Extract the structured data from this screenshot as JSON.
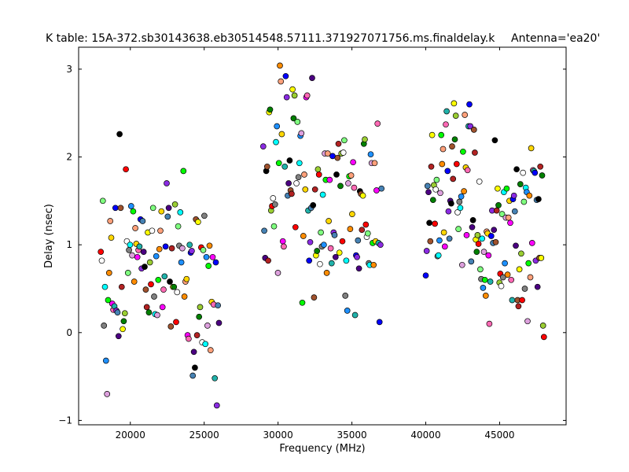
{
  "chart_data": {
    "type": "scatter",
    "title": "K table: 15A-372.sb30143638.eb30514548.57111.371927071756.ms.finaldelay.k",
    "subtitle": "Antenna='ea20'",
    "xlabel": "Frequency (MHz)",
    "ylabel": "Delay (nsec)",
    "xlim": [
      16500,
      49500
    ],
    "ylim": [
      -1.05,
      3.25
    ],
    "xticks": [
      20000,
      25000,
      30000,
      35000,
      40000,
      45000
    ],
    "yticks": [
      -1,
      0,
      1,
      2,
      3
    ],
    "grid": false,
    "marker_colors": [
      "#ff0000",
      "#00ff00",
      "#0000ff",
      "#ffff00",
      "#00ffff",
      "#ff00ff",
      "#000000",
      "#ffffff",
      "#ff8c00",
      "#8a2be2",
      "#008000",
      "#1e90ff",
      "#ff69b4",
      "#a0522d",
      "#7fff7f",
      "#ffa07a",
      "#4682b4",
      "#9acd32",
      "#dda0dd",
      "#20b2aa",
      "#b22222",
      "#808080",
      "#ffd700",
      "#4b0082"
    ],
    "bands": [
      {
        "x_range": [
          18000,
          26000
        ],
        "y": [
          0.92,
          0.82,
          1.5,
          0.08,
          0.52,
          -0.32,
          -0.7,
          0.37,
          0.68,
          1.27,
          1.08,
          0.33,
          0.26,
          0.3,
          1.42,
          0.25,
          0.23,
          -0.04,
          2.26,
          1.42,
          0.52,
          0.04,
          0.13,
          0.22,
          1.86,
          1.04,
          0.68,
          0.94,
          1.0,
          1.44,
          0.88,
          1.38,
          0.58,
          1.19,
          1.01,
          0.86,
          0.94,
          0.98,
          1.29,
          0.73,
          1.27,
          0.92,
          0.75,
          0.49,
          0.29,
          1.14,
          0.23,
          0.8,
          0.55,
          1.16,
          1.42,
          0.41,
          0.21,
          0.87,
          0.2,
          0.6,
          0.95,
          1.16,
          1.38,
          0.29,
          0.49,
          0.64,
          0.98,
          1.7,
          1.32,
          1.42,
          0.58,
          0.07,
          0.96,
          0.52,
          0.52,
          1.46,
          0.12,
          0.46,
          1.21,
          0.99,
          1.37,
          0.8,
          0.96,
          1.84,
          0.41,
          0.58,
          0.61,
          -0.03,
          -0.07,
          1.0,
          0.91,
          0.93,
          -0.49,
          -0.22,
          -0.4,
          1.29,
          -0.03,
          1.26,
          0.18,
          0.29,
          0.97,
          -0.11,
          0.94,
          1.33,
          -0.13,
          0.86,
          0.08,
          0.76,
          0.99,
          -0.2,
          0.35,
          0.86,
          0.32,
          -0.52,
          0.8,
          -0.83,
          0.31,
          0.11
        ]
      },
      {
        "x_range": [
          29000,
          37000
        ],
        "y": [
          2.12,
          1.16,
          0.85,
          1.84,
          1.89,
          0.82,
          2.51,
          2.54,
          1.39,
          1.44,
          1.53,
          1.21,
          1.46,
          2.17,
          2.35,
          0.68,
          1.93,
          3.04,
          2.86,
          2.26,
          1.04,
          0.98,
          1.89,
          2.92,
          2.68,
          1.56,
          1.7,
          1.96,
          1.62,
          1.58,
          2.77,
          2.44,
          2.7,
          1.2,
          1.7,
          2.4,
          1.77,
          1.93,
          2.24,
          2.27,
          0.34,
          1.1,
          1.8,
          1.63,
          2.68,
          2.7,
          1.39,
          0.82,
          1.03,
          1.42,
          2.9,
          1.45,
          0.4,
          1.63,
          0.88,
          0.93,
          1.86,
          1.8,
          0.78,
          1.14,
          0.98,
          1.57,
          1.0,
          2.04,
          1.74,
          0.68,
          2.04,
          1.27,
          1.74,
          0.96,
          0.79,
          2.01,
          1.14,
          1.11,
          0.86,
          1.8,
          1.99,
          2.15,
          0.91,
          1.67,
          2.04,
          1.04,
          2.05,
          2.19,
          0.42,
          0.82,
          0.25,
          1.7,
          1.78,
          1.18,
          1.79,
          1.35,
          1.94,
          1.65,
          0.2,
          0.88,
          0.86,
          1.05,
          0.73,
          1.61,
          1.58,
          1.17,
          1.56,
          2.15,
          2.2,
          1.23,
          1.09,
          1.13,
          0.79,
          0.77,
          2.03,
          1.93,
          1.02,
          0.77,
          1.93,
          1.04,
          1.62,
          2.38,
          1.02,
          0.12,
          1.0,
          1.64
        ]
      },
      {
        "x_range": [
          40000,
          48000
        ],
        "y": [
          0.65,
          0.93,
          1.67,
          1.6,
          1.25,
          1.04,
          1.89,
          2.25,
          1.51,
          1.68,
          1.24,
          1.63,
          1.74,
          0.87,
          0.88,
          1.05,
          1.59,
          2.25,
          1.92,
          2.09,
          1.14,
          0.98,
          2.37,
          2.52,
          1.84,
          1.38,
          1.07,
          1.5,
          1.47,
          2.12,
          1.75,
          2.61,
          2.2,
          2.47,
          1.92,
          1.37,
          1.18,
          1.49,
          1.42,
          1.55,
          0.77,
          2.06,
          1.61,
          2.48,
          1.88,
          1.11,
          1.85,
          2.35,
          2.6,
          2.35,
          0.81,
          1.2,
          1.28,
          2.31,
          2.05,
          1.06,
          0.92,
          1.11,
          1.01,
          1.72,
          0.72,
          0.61,
          1.07,
          0.51,
          0.92,
          0.6,
          0.42,
          1.15,
          1.13,
          0.88,
          0.1,
          0.58,
          1.1,
          1.39,
          1.02,
          1.17,
          2.19,
          1.03,
          1.39,
          1.64,
          1.45,
          0.57,
          0.67,
          0.53,
          1.35,
          0.63,
          1.6,
          0.79,
          1.31,
          1.64,
          0.66,
          1.31,
          1.5,
          1.25,
          0.6,
          0.37,
          1.52,
          1.56,
          1.38,
          0.99,
          1.86,
          0.37,
          0.3,
          0.72,
          1.69,
          0.9,
          0.37,
          1.82,
          1.49,
          0.5,
          1.65,
          1.6,
          0.13,
          0.79,
          1.56,
          0.63,
          2.1,
          1.02,
          1.85,
          1.84,
          1.82,
          0.82,
          1.51,
          0.52,
          1.52,
          0.85,
          1.89,
          0.85,
          1.79,
          0.08,
          -0.05
        ]
      }
    ]
  }
}
